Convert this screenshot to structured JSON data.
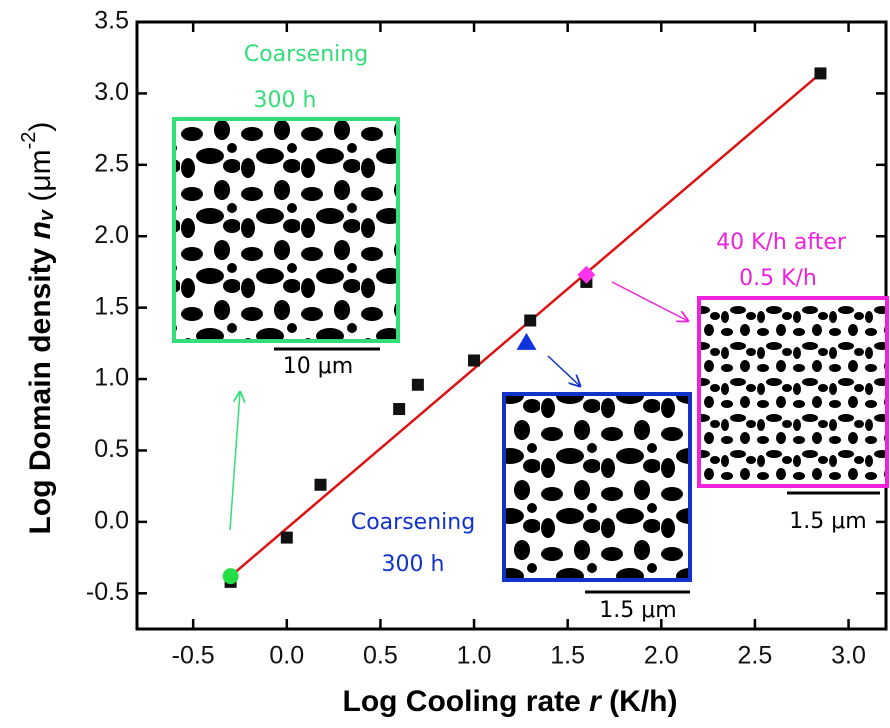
{
  "chart_data": {
    "type": "scatter",
    "x_label": {
      "text": "Log Cooling rate ",
      "var": "r",
      "unit": " (K/h)"
    },
    "y_label": {
      "text": "Log Domain density ",
      "var": "n",
      "sub": "v",
      "unit_open": " (μm",
      "sup": "-2",
      "unit_close": ")"
    },
    "xlim": [
      -0.8,
      3.2
    ],
    "ylim": [
      -0.75,
      3.5
    ],
    "xticks": [
      -0.5,
      {
        "value": 0,
        "label": "0.0"
      },
      0.5,
      {
        "value": 1,
        "label": "1.0"
      },
      1.5,
      {
        "value": 2,
        "label": "2.0"
      },
      2.5,
      {
        "value": 3,
        "label": "3.0"
      }
    ],
    "yticks": [
      -0.5,
      {
        "value": 0,
        "label": "0.0"
      },
      0.5,
      {
        "value": 1,
        "label": "1.0"
      },
      1.5,
      {
        "value": 2,
        "label": "2.0"
      },
      2.5,
      {
        "value": 3,
        "label": "3.0"
      },
      3.5
    ],
    "series": [
      {
        "marker": "square",
        "color": "#111111",
        "x": [
          -0.3,
          0,
          0.18,
          0.6,
          0.7,
          1.0,
          1.3,
          1.6,
          2.85
        ],
        "values": [
          -0.42,
          -0.11,
          0.26,
          0.79,
          0.96,
          1.13,
          1.41,
          1.68,
          3.14
        ]
      },
      {
        "marker": "circle",
        "color": "#22dd44",
        "x": [
          -0.3
        ],
        "values": [
          -0.38
        ]
      },
      {
        "marker": "triangle",
        "color": "#1133dd",
        "x": [
          1.28
        ],
        "values": [
          1.26
        ]
      },
      {
        "marker": "diamond",
        "color": "#ff33ee",
        "x": [
          1.6
        ],
        "values": [
          1.73
        ]
      }
    ],
    "fit": {
      "color": "#dd1111",
      "x": [
        -0.3,
        2.85
      ],
      "values": [
        -0.38,
        3.14
      ]
    },
    "annotations": {
      "green": {
        "color": "#33dd77",
        "line1": "Coarsening",
        "line2": "300 h",
        "scale": "10 μm"
      },
      "blue": {
        "color": "#1133cc",
        "line1": "Coarsening",
        "line2": "300 h",
        "scale": "1.5 μm"
      },
      "magenta": {
        "color": "#ee22dd",
        "line1": "40 K/h after",
        "line2": "0.5 K/h",
        "scale": "1.5 μm"
      }
    }
  }
}
